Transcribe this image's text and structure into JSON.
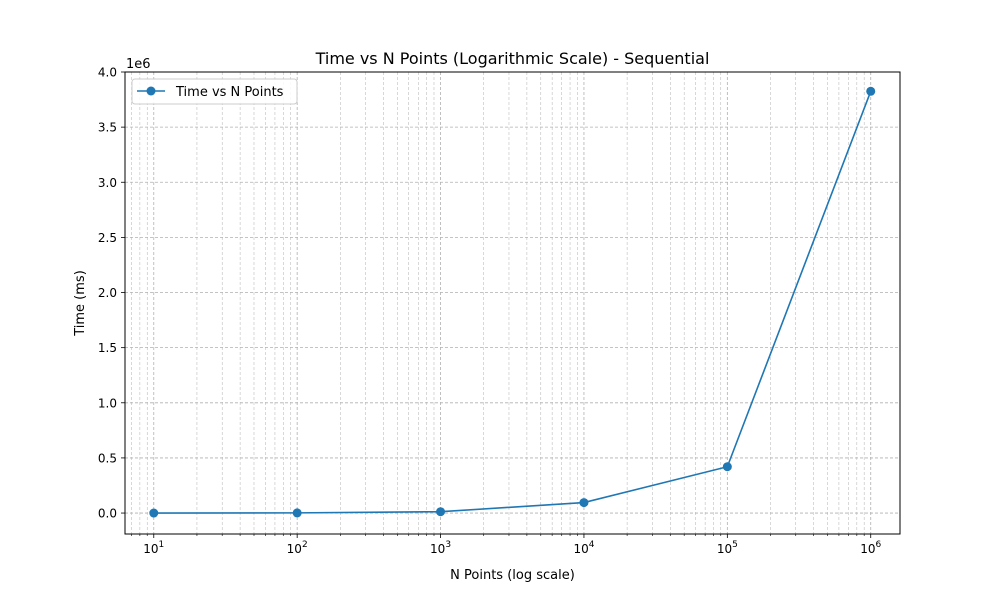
{
  "chart_data": {
    "type": "line",
    "title": "Time vs N Points (Logarithmic Scale) - Sequential",
    "xlabel": "N Points (log scale)",
    "ylabel": "Time (ms)",
    "x_scale": "log",
    "x_ticks": [
      10,
      100,
      1000,
      10000,
      100000,
      1000000
    ],
    "x_tick_labels": [
      {
        "base": "10",
        "exp": "1"
      },
      {
        "base": "10",
        "exp": "2"
      },
      {
        "base": "10",
        "exp": "3"
      },
      {
        "base": "10",
        "exp": "4"
      },
      {
        "base": "10",
        "exp": "5"
      },
      {
        "base": "10",
        "exp": "6"
      }
    ],
    "y_ticks": [
      0,
      0.5,
      1.0,
      1.5,
      2.0,
      2.5,
      3.0,
      3.5,
      4.0
    ],
    "y_tick_labels": [
      "0.0",
      "0.5",
      "1.0",
      "1.5",
      "2.0",
      "2.5",
      "3.0",
      "3.5",
      "4.0"
    ],
    "y_offset_label": "1e6",
    "y_multiplier": 1000000,
    "xlim": [
      6.3,
      1600000
    ],
    "ylim": [
      -190000,
      4000000
    ],
    "grid": true,
    "legend_position": "top-left",
    "series": [
      {
        "name": "Time vs N Points",
        "color": "#1f77b4",
        "marker": "circle",
        "x": [
          10,
          100,
          1000,
          10000,
          100000,
          1000000
        ],
        "y": [
          60,
          1500,
          12000,
          95000,
          420000,
          3825000
        ]
      }
    ]
  }
}
